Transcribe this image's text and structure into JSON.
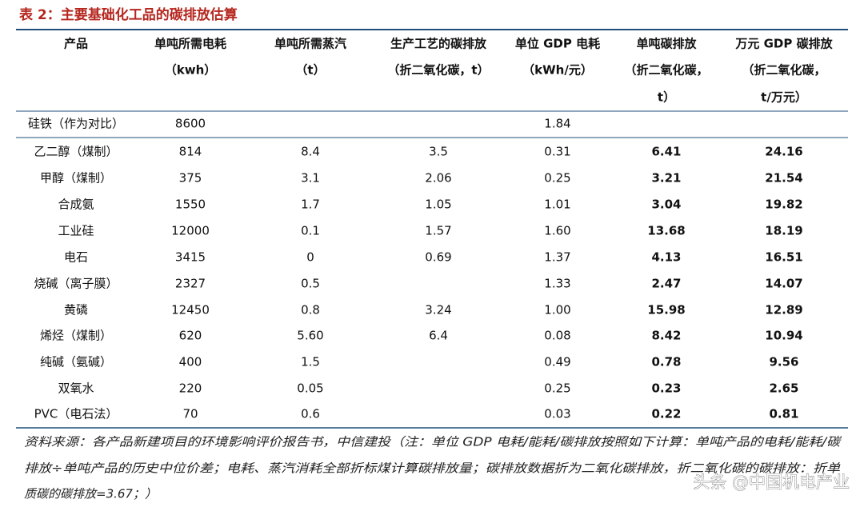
{
  "title": "表 2：主要基础化工品的碳排放估算",
  "table": {
    "header": [
      [
        "产品"
      ],
      [
        "单吨所需电耗",
        "（kwh）"
      ],
      [
        "单吨所需蒸汽",
        "（t）"
      ],
      [
        "生产工艺的碳排放",
        "（折二氧化碳，t）"
      ],
      [
        "单位 GDP 电耗",
        "（kWh/元）"
      ],
      [
        "单吨碳排放",
        "（折二氧化碳，",
        "t）"
      ],
      [
        "万元 GDP 碳排放",
        "（折二氧化碳，",
        "t/万元）"
      ]
    ],
    "rows": [
      [
        "硅铁（作为对比）",
        "8600",
        null,
        null,
        "1.84",
        null,
        null
      ],
      [
        "乙二醇（煤制）",
        "814",
        "8.4",
        "3.5",
        "0.31",
        "6.41",
        "24.16"
      ],
      [
        "甲醇（煤制）",
        "375",
        "3.1",
        "2.06",
        "0.25",
        "3.21",
        "21.54"
      ],
      [
        "合成氨",
        "1550",
        "1.7",
        "1.05",
        "1.01",
        "3.04",
        "19.82"
      ],
      [
        "工业硅",
        "12000",
        "0.1",
        "1.57",
        "1.60",
        "13.68",
        "18.19"
      ],
      [
        "电石",
        "3415",
        "0",
        "0.69",
        "1.37",
        "4.13",
        "16.51"
      ],
      [
        "烧碱（离子膜）",
        "2327",
        "0.5",
        null,
        "1.33",
        "2.47",
        "14.07"
      ],
      [
        "黄磷",
        "12450",
        "0.8",
        "3.24",
        "1.00",
        "15.98",
        "12.89"
      ],
      [
        "烯烃（煤制）",
        "620",
        "5.60",
        "6.4",
        "0.08",
        "8.42",
        "10.94"
      ],
      [
        "纯碱（氨碱）",
        "400",
        "1.5",
        null,
        "0.49",
        "0.78",
        "9.56"
      ],
      [
        "双氧水",
        "220",
        "0.05",
        null,
        "0.25",
        "0.23",
        "2.65"
      ],
      [
        "PVC（电石法）",
        "70",
        "0.6",
        null,
        "0.03",
        "0.22",
        "0.81"
      ]
    ]
  },
  "note": [
    "资料来源：各产品新建项目的环境影响评价报告书，中信建投（注：单位 GDP 电耗/能耗/碳排放按照如下计算：单吨产品的电耗/能耗/碳",
    "排放÷单吨产品的历史中位价差；电耗、蒸汽消耗全部折标煤计算碳排放量；碳排放数据折为二氧化碳排放，折二氧化碳的碳排放：折单",
    "质碳的碳排放=3.67；）"
  ],
  "watermark": "头条 @中国机电产业"
}
